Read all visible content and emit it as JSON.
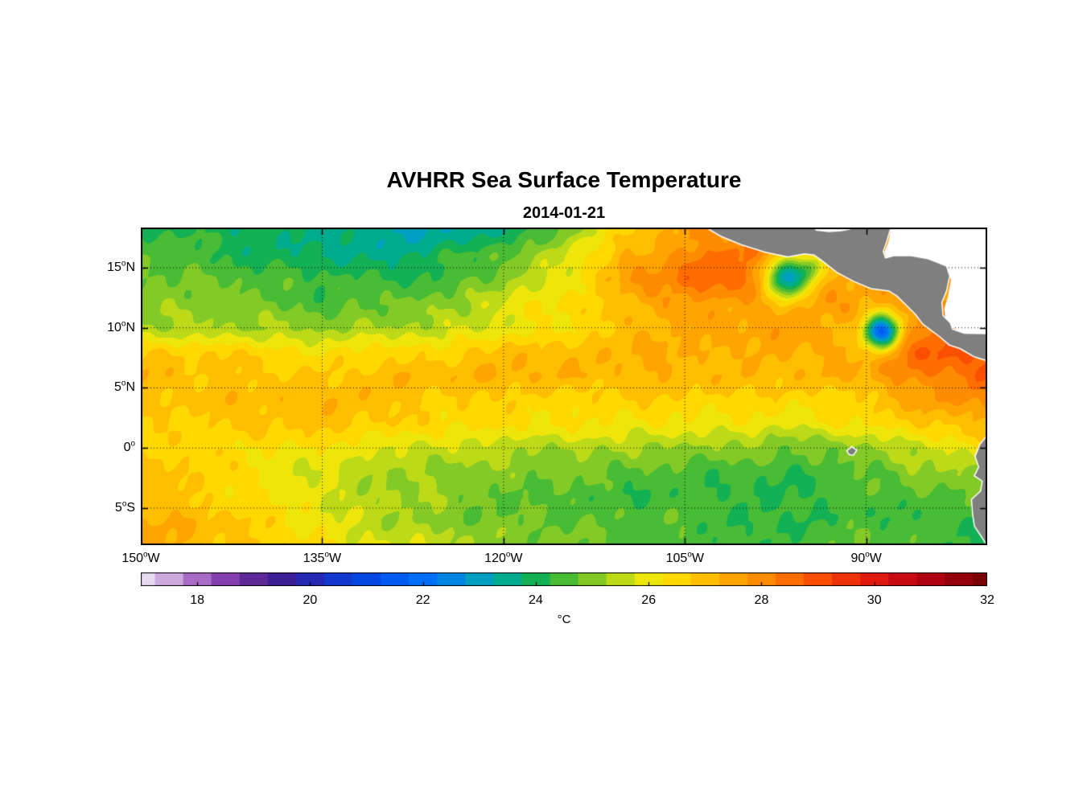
{
  "title": "AVHRR Sea Surface Temperature",
  "subtitle": "2014-01-21",
  "chart_data": {
    "type": "heatmap",
    "lon_range": [
      -150,
      -80
    ],
    "lat_range": [
      -8.08,
      18.34
    ],
    "x_ticks": [
      {
        "text": "150",
        "sup": "o",
        "hemi": "W",
        "lon": -150
      },
      {
        "text": "135",
        "sup": "o",
        "hemi": "W",
        "lon": -135
      },
      {
        "text": "120",
        "sup": "o",
        "hemi": "W",
        "lon": -120
      },
      {
        "text": "105",
        "sup": "o",
        "hemi": "W",
        "lon": -105
      },
      {
        "text": "90",
        "sup": "o",
        "hemi": "W",
        "lon": -90
      }
    ],
    "y_ticks": [
      {
        "text": "15",
        "sup": "o",
        "hemi": "N",
        "lat": 15
      },
      {
        "text": "10",
        "sup": "o",
        "hemi": "N",
        "lat": 10
      },
      {
        "text": "5",
        "sup": "o",
        "hemi": "N",
        "lat": 5
      },
      {
        "text": "0",
        "sup": "o",
        "hemi": "",
        "lat": 0
      },
      {
        "text": "5",
        "sup": "o",
        "hemi": "S",
        "lat": -5
      }
    ],
    "gridlines": {
      "lons": [
        -135,
        -120,
        -105,
        -90
      ],
      "lats": [
        15,
        10,
        5,
        0,
        -5
      ],
      "style": "dotted"
    },
    "grid": {
      "lons": [
        -150,
        -145,
        -140,
        -135,
        -130,
        -125,
        -120,
        -115,
        -110,
        -105,
        -100,
        -95,
        -90,
        -85,
        -80
      ],
      "lats": [
        18,
        16,
        14,
        12,
        10,
        8,
        6,
        4,
        2,
        0,
        -2,
        -4,
        -6,
        -8
      ],
      "sst_c": [
        [
          24.3,
          24.0,
          23.8,
          23.5,
          23.3,
          23.3,
          23.8,
          25.0,
          26.5,
          27.5,
          27.8,
          27.5,
          27.5,
          27.5,
          27.5
        ],
        [
          24.8,
          24.5,
          24.0,
          23.6,
          23.5,
          24.0,
          24.8,
          25.8,
          27.2,
          28.0,
          28.4,
          27.8,
          27.5,
          27.5,
          27.5
        ],
        [
          25.0,
          24.8,
          24.5,
          24.3,
          24.2,
          24.5,
          25.2,
          26.1,
          27.4,
          28.4,
          28.5,
          27.8,
          27.6,
          27.8,
          27.8
        ],
        [
          25.2,
          25.0,
          24.8,
          24.6,
          24.8,
          25.2,
          25.8,
          26.3,
          27.0,
          27.5,
          27.8,
          27.8,
          27.6,
          27.8,
          28.0
        ],
        [
          25.5,
          25.3,
          25.2,
          25.0,
          25.2,
          25.6,
          26.0,
          26.4,
          26.8,
          27.2,
          27.4,
          27.5,
          27.4,
          28.3,
          28.6
        ],
        [
          26.8,
          26.6,
          26.5,
          26.4,
          26.5,
          26.7,
          26.9,
          27.0,
          27.2,
          27.3,
          27.3,
          27.2,
          27.5,
          28.8,
          29.0
        ],
        [
          27.2,
          27.0,
          27.0,
          26.9,
          27.0,
          27.1,
          27.2,
          27.2,
          27.3,
          27.2,
          27.1,
          27.0,
          27.3,
          28.1,
          28.7
        ],
        [
          26.8,
          26.9,
          27.0,
          27.2,
          27.0,
          26.8,
          26.6,
          26.5,
          26.6,
          26.6,
          26.5,
          26.4,
          26.8,
          27.6,
          28.2
        ],
        [
          26.4,
          26.6,
          27.0,
          27.1,
          26.8,
          26.4,
          26.2,
          26.1,
          26.2,
          26.3,
          26.2,
          26.0,
          26.2,
          26.6,
          27.2
        ],
        [
          26.6,
          26.5,
          26.3,
          26.0,
          25.8,
          25.6,
          25.5,
          25.4,
          25.3,
          25.2,
          25.0,
          24.8,
          25.0,
          25.6,
          26.5
        ],
        [
          26.8,
          26.6,
          26.2,
          25.8,
          25.4,
          25.1,
          24.9,
          24.8,
          24.7,
          24.6,
          24.5,
          24.4,
          24.6,
          25.0,
          25.2
        ],
        [
          27.0,
          26.8,
          26.3,
          25.8,
          25.3,
          25.0,
          24.7,
          24.5,
          24.4,
          24.4,
          24.3,
          24.3,
          24.5,
          24.6,
          24.5
        ],
        [
          27.2,
          27.0,
          26.5,
          26.0,
          25.5,
          25.1,
          24.8,
          24.6,
          24.5,
          24.5,
          24.4,
          24.4,
          24.5,
          24.4,
          24.2
        ],
        [
          27.4,
          27.2,
          26.8,
          26.3,
          25.8,
          25.4,
          25.0,
          24.8,
          24.7,
          24.6,
          24.5,
          24.5,
          24.6,
          24.4,
          24.0
        ]
      ]
    },
    "anomalies": [
      {
        "name": "tehuantepec-cold-eddy",
        "lon": -96.6,
        "lat": 14.1,
        "amp": -5.2,
        "sigma": 1.25
      },
      {
        "name": "papagayo-cold-eddy",
        "lon": -88.7,
        "lat": 9.7,
        "amp": -6.0,
        "sigma": 1.0
      },
      {
        "name": "tehuantepec-jet",
        "lon": -94.4,
        "lat": 15.1,
        "amp": -2.0,
        "sigma": 0.9
      }
    ],
    "colormap": {
      "min": 17,
      "max": 32,
      "step": 0.5,
      "stops": [
        "#E6D9F0",
        "#CDA9DE",
        "#A86CC6",
        "#8440AE",
        "#5F2898",
        "#3C1F96",
        "#2428B2",
        "#1238CE",
        "#0448E2",
        "#005AF0",
        "#006EF6",
        "#0086E2",
        "#009EC0",
        "#00AC8E",
        "#14B054",
        "#48BC34",
        "#84CA26",
        "#BCDA18",
        "#EEE60A",
        "#FFD800",
        "#FFBE00",
        "#FFA400",
        "#FF8C00",
        "#FF6C00",
        "#FA4E00",
        "#EE3206",
        "#E01A0E",
        "#C80A12",
        "#AE0210",
        "#94000A",
        "#7A0002"
      ]
    },
    "colorbar": {
      "ticks": [
        18,
        20,
        22,
        24,
        26,
        28,
        30,
        32
      ],
      "unit": "°C"
    },
    "land": {
      "fill": "#7F7F7F",
      "coast_fringe": "#FFFFFF",
      "polygons": [
        [
          [
            -103.6,
            18.6
          ],
          [
            -102.0,
            17.65
          ],
          [
            -100.3,
            16.95
          ],
          [
            -98.4,
            16.35
          ],
          [
            -96.5,
            15.95
          ],
          [
            -95.1,
            16.2
          ],
          [
            -94.3,
            16.1
          ],
          [
            -93.6,
            15.6
          ],
          [
            -92.4,
            14.65
          ],
          [
            -91.0,
            13.9
          ],
          [
            -89.6,
            13.3
          ],
          [
            -88.1,
            13.1
          ],
          [
            -87.4,
            12.65
          ],
          [
            -86.7,
            11.95
          ],
          [
            -85.9,
            11.15
          ],
          [
            -85.3,
            10.35
          ],
          [
            -84.7,
            9.9
          ],
          [
            -83.9,
            9.3
          ],
          [
            -83.1,
            8.6
          ],
          [
            -82.2,
            8.3
          ],
          [
            -81.1,
            7.65
          ],
          [
            -79.7,
            7.2
          ],
          [
            -79.7,
            9.45
          ],
          [
            -81.9,
            9.5
          ],
          [
            -82.9,
            9.85
          ],
          [
            -83.1,
            10.4
          ],
          [
            -83.7,
            11.0
          ],
          [
            -83.8,
            12.1
          ],
          [
            -83.4,
            13.1
          ],
          [
            -83.15,
            14.3
          ],
          [
            -83.4,
            15.1
          ],
          [
            -84.9,
            15.7
          ],
          [
            -86.3,
            15.95
          ],
          [
            -87.7,
            15.95
          ],
          [
            -88.45,
            15.75
          ],
          [
            -88.65,
            16.35
          ],
          [
            -88.35,
            17.2
          ],
          [
            -87.95,
            18.6
          ],
          [
            -91.05,
            18.6
          ],
          [
            -91.35,
            18.15
          ],
          [
            -92.1,
            18.02
          ],
          [
            -93.1,
            17.95
          ],
          [
            -94.15,
            18.08
          ],
          [
            -94.65,
            18.6
          ]
        ],
        [
          [
            -79.7,
            1.35
          ],
          [
            -80.55,
            0.3
          ],
          [
            -80.95,
            -0.7
          ],
          [
            -80.65,
            -1.6
          ],
          [
            -81.0,
            -2.3
          ],
          [
            -80.35,
            -2.75
          ],
          [
            -80.5,
            -3.6
          ],
          [
            -81.25,
            -4.3
          ],
          [
            -81.15,
            -5.6
          ],
          [
            -81.0,
            -6.5
          ],
          [
            -80.4,
            -7.4
          ],
          [
            -79.8,
            -8.4
          ],
          [
            -79.6,
            -8.4
          ]
        ],
        [
          [
            -91.55,
            -0.25
          ],
          [
            -91.2,
            0.05
          ],
          [
            -90.85,
            -0.2
          ],
          [
            -91.1,
            -0.55
          ],
          [
            -91.4,
            -0.5
          ]
        ]
      ],
      "ocean_mask_polygons": [
        [
          [
            -87.9,
            18.6
          ],
          [
            -88.15,
            17.2
          ],
          [
            -88.5,
            16.3
          ],
          [
            -88.3,
            15.6
          ],
          [
            -86.2,
            15.8
          ],
          [
            -84.8,
            15.55
          ],
          [
            -83.25,
            14.95
          ],
          [
            -83.0,
            14.0
          ],
          [
            -83.25,
            12.6
          ],
          [
            -83.55,
            11.6
          ],
          [
            -83.45,
            10.6
          ],
          [
            -82.85,
            10.0
          ],
          [
            -81.8,
            9.35
          ],
          [
            -79.6,
            9.0
          ],
          [
            -79.6,
            18.6
          ]
        ],
        [
          [
            -94.6,
            18.6
          ],
          [
            -94.1,
            18.05
          ],
          [
            -93.0,
            17.98
          ],
          [
            -92.0,
            18.05
          ],
          [
            -91.3,
            18.2
          ],
          [
            -91.0,
            18.6
          ]
        ]
      ],
      "mask_color": "#FFFFFF"
    }
  }
}
